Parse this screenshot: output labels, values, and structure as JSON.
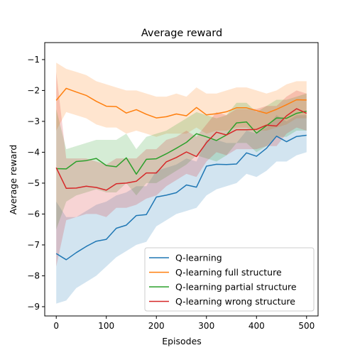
{
  "chart_data": {
    "type": "line",
    "title": "Average reward",
    "xlabel": "Episodes",
    "ylabel": "Average reward",
    "xlim": [
      -23,
      523
    ],
    "ylim": [
      -9.3,
      -0.45
    ],
    "xticks": [
      0,
      100,
      200,
      300,
      400,
      500
    ],
    "yticks": [
      -9,
      -8,
      -7,
      -6,
      -5,
      -4,
      -3,
      -2,
      -1
    ],
    "grid": false,
    "legend_position": "lower-right",
    "x": [
      0,
      20,
      40,
      60,
      80,
      100,
      120,
      140,
      160,
      180,
      200,
      220,
      240,
      260,
      280,
      300,
      320,
      340,
      360,
      380,
      400,
      420,
      440,
      460,
      480,
      500
    ],
    "series": [
      {
        "name": "Q-learning",
        "color": "#1f77b4",
        "values": [
          -7.28,
          -7.48,
          -7.25,
          -7.05,
          -6.88,
          -6.82,
          -6.46,
          -6.36,
          -6.05,
          -6.02,
          -5.45,
          -5.39,
          -5.31,
          -5.06,
          -5.13,
          -4.45,
          -4.39,
          -4.4,
          -4.38,
          -4.02,
          -4.13,
          -3.87,
          -3.48,
          -3.66,
          -3.49,
          -3.45
        ],
        "lower": [
          -8.9,
          -8.8,
          -8.4,
          -8.2,
          -8.0,
          -7.7,
          -7.4,
          -7.2,
          -7.0,
          -6.9,
          -6.4,
          -6.2,
          -6.0,
          -5.9,
          -5.8,
          -5.4,
          -5.2,
          -5.1,
          -5.0,
          -4.7,
          -4.8,
          -4.6,
          -4.3,
          -4.3,
          -4.1,
          -4.0
        ],
        "upper": [
          -5.6,
          -6.1,
          -6.1,
          -5.9,
          -5.7,
          -5.6,
          -5.4,
          -5.3,
          -5.1,
          -5.1,
          -4.6,
          -4.5,
          -4.4,
          -4.2,
          -4.3,
          -3.6,
          -3.6,
          -3.7,
          -3.7,
          -3.3,
          -3.4,
          -3.2,
          -2.8,
          -3.0,
          -2.8,
          -2.8
        ]
      },
      {
        "name": "Q-learning full structure",
        "color": "#ff7f0e",
        "values": [
          -2.32,
          -1.93,
          -2.05,
          -2.16,
          -2.35,
          -2.51,
          -2.52,
          -2.73,
          -2.62,
          -2.77,
          -2.89,
          -2.85,
          -2.76,
          -2.82,
          -2.55,
          -2.79,
          -2.75,
          -2.69,
          -2.56,
          -2.56,
          -2.65,
          -2.74,
          -2.61,
          -2.46,
          -2.3,
          -2.31
        ],
        "lower": [
          -3.3,
          -2.7,
          -2.8,
          -2.9,
          -3.1,
          -3.2,
          -3.2,
          -3.4,
          -3.3,
          -3.4,
          -3.5,
          -3.4,
          -3.4,
          -3.4,
          -3.2,
          -3.4,
          -3.3,
          -3.3,
          -3.2,
          -3.2,
          -3.3,
          -3.3,
          -3.2,
          -3.1,
          -2.9,
          -2.9
        ],
        "upper": [
          -1.1,
          -1.3,
          -1.4,
          -1.5,
          -1.7,
          -1.8,
          -1.9,
          -2.0,
          -2.0,
          -2.1,
          -2.2,
          -2.2,
          -2.1,
          -2.2,
          -1.9,
          -2.1,
          -2.1,
          -2.0,
          -1.9,
          -1.9,
          -2.0,
          -2.1,
          -2.0,
          -1.8,
          -1.7,
          -1.7
        ]
      },
      {
        "name": "Q-learning partial structure",
        "color": "#2ca02c",
        "values": [
          -4.53,
          -4.54,
          -4.3,
          -4.27,
          -4.2,
          -4.43,
          -4.47,
          -4.18,
          -4.71,
          -4.23,
          -4.21,
          -4.05,
          -3.87,
          -3.68,
          -3.4,
          -3.5,
          -3.62,
          -3.44,
          -3.05,
          -3.02,
          -3.38,
          -3.14,
          -2.89,
          -2.9,
          -2.74,
          -2.67
        ],
        "lower": [
          -6.5,
          -5.6,
          -5.4,
          -5.3,
          -5.2,
          -5.3,
          -5.3,
          -5.0,
          -5.4,
          -5.0,
          -5.0,
          -4.8,
          -4.6,
          -4.4,
          -4.1,
          -4.2,
          -4.3,
          -4.1,
          -3.7,
          -3.7,
          -4.0,
          -3.8,
          -3.5,
          -3.5,
          -3.3,
          -3.3
        ],
        "upper": [
          -2.6,
          -3.9,
          -3.8,
          -3.7,
          -3.6,
          -3.6,
          -3.6,
          -3.4,
          -3.9,
          -3.5,
          -3.4,
          -3.3,
          -3.1,
          -2.9,
          -2.7,
          -2.8,
          -2.9,
          -2.8,
          -2.4,
          -2.4,
          -2.7,
          -2.5,
          -2.3,
          -2.3,
          -2.2,
          -2.1
        ]
      },
      {
        "name": "Q-learning wrong structure",
        "color": "#d62728",
        "values": [
          -4.5,
          -5.17,
          -5.16,
          -5.1,
          -5.14,
          -5.23,
          -5.02,
          -5.0,
          -4.94,
          -4.67,
          -4.67,
          -4.31,
          -4.17,
          -3.99,
          -4.14,
          -3.69,
          -3.35,
          -3.44,
          -3.27,
          -3.27,
          -3.26,
          -3.12,
          -3.15,
          -2.82,
          -2.59,
          -2.74
        ],
        "lower": [
          -7.7,
          -6.2,
          -6.1,
          -6.0,
          -6.0,
          -6.1,
          -5.8,
          -5.8,
          -5.7,
          -5.5,
          -5.4,
          -5.1,
          -4.9,
          -4.7,
          -4.8,
          -4.3,
          -4.0,
          -4.1,
          -3.9,
          -3.9,
          -3.9,
          -3.8,
          -3.8,
          -3.4,
          -3.2,
          -3.3
        ],
        "upper": [
          -1.4,
          -4.2,
          -4.2,
          -4.2,
          -4.3,
          -4.4,
          -4.2,
          -4.2,
          -4.2,
          -3.9,
          -3.9,
          -3.6,
          -3.5,
          -3.3,
          -3.5,
          -3.1,
          -2.7,
          -2.8,
          -2.6,
          -2.6,
          -2.6,
          -2.5,
          -2.5,
          -2.2,
          -2.0,
          -2.1
        ]
      }
    ]
  }
}
